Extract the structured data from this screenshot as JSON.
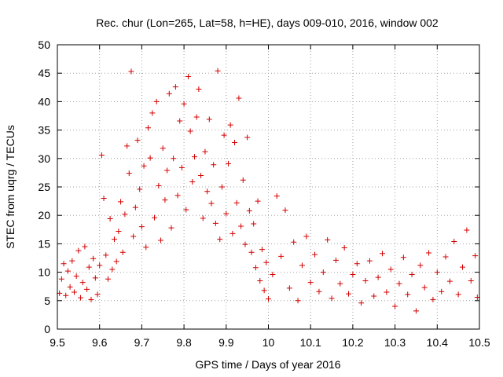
{
  "chart_data": {
    "type": "scatter",
    "title": "Rec. chur (Lon=265, Lat=58, h=HE), days 009-010, 2016, window 002",
    "xlabel": "GPS time / Days of year 2016",
    "ylabel": "STEC from uqrg / TECUs",
    "xlim": [
      9.5,
      10.5
    ],
    "ylim": [
      0,
      50
    ],
    "x_ticks": [
      "9.5",
      "9.6",
      "9.7",
      "9.8",
      "9.9",
      "10",
      "10.1",
      "10.2",
      "10.3",
      "10.4",
      "10.5"
    ],
    "y_ticks": [
      "0",
      "5",
      "10",
      "15",
      "20",
      "25",
      "30",
      "35",
      "40",
      "45",
      "50"
    ],
    "grid": true,
    "marker": "plus",
    "color": "#d40000",
    "series": [
      {
        "points": [
          [
            9.505,
            6.3
          ],
          [
            9.51,
            8.8
          ],
          [
            9.515,
            11.5
          ],
          [
            9.52,
            5.9
          ],
          [
            9.525,
            10.2
          ],
          [
            9.53,
            7.4
          ],
          [
            9.535,
            12.0
          ],
          [
            9.54,
            6.5
          ],
          [
            9.545,
            9.3
          ],
          [
            9.55,
            13.8
          ],
          [
            9.555,
            5.5
          ],
          [
            9.56,
            8.2
          ],
          [
            9.565,
            14.5
          ],
          [
            9.57,
            7.0
          ],
          [
            9.575,
            10.9
          ],
          [
            9.58,
            5.2
          ],
          [
            9.585,
            12.4
          ],
          [
            9.59,
            9.0
          ],
          [
            9.595,
            6.1
          ],
          [
            9.6,
            11.2
          ],
          [
            9.605,
            30.6
          ],
          [
            9.61,
            23.0
          ],
          [
            9.615,
            13.0
          ],
          [
            9.62,
            8.8
          ],
          [
            9.625,
            19.4
          ],
          [
            9.63,
            10.5
          ],
          [
            9.635,
            15.8
          ],
          [
            9.64,
            11.9
          ],
          [
            9.645,
            17.2
          ],
          [
            9.65,
            22.4
          ],
          [
            9.655,
            13.5
          ],
          [
            9.66,
            20.2
          ],
          [
            9.665,
            32.2
          ],
          [
            9.67,
            27.4
          ],
          [
            9.675,
            45.3
          ],
          [
            9.68,
            16.3
          ],
          [
            9.685,
            21.4
          ],
          [
            9.69,
            33.2
          ],
          [
            9.695,
            24.6
          ],
          [
            9.7,
            18.0
          ],
          [
            9.705,
            28.7
          ],
          [
            9.71,
            14.4
          ],
          [
            9.715,
            35.4
          ],
          [
            9.72,
            30.1
          ],
          [
            9.725,
            38.0
          ],
          [
            9.73,
            19.6
          ],
          [
            9.735,
            40.0
          ],
          [
            9.74,
            25.2
          ],
          [
            9.745,
            15.6
          ],
          [
            9.75,
            31.8
          ],
          [
            9.755,
            22.7
          ],
          [
            9.76,
            27.9
          ],
          [
            9.765,
            41.4
          ],
          [
            9.77,
            17.8
          ],
          [
            9.775,
            30.0
          ],
          [
            9.78,
            42.6
          ],
          [
            9.785,
            23.5
          ],
          [
            9.79,
            36.6
          ],
          [
            9.795,
            28.4
          ],
          [
            9.8,
            39.6
          ],
          [
            9.805,
            21.0
          ],
          [
            9.81,
            44.4
          ],
          [
            9.815,
            34.8
          ],
          [
            9.82,
            25.9
          ],
          [
            9.825,
            30.3
          ],
          [
            9.83,
            37.3
          ],
          [
            9.835,
            42.2
          ],
          [
            9.84,
            27.0
          ],
          [
            9.845,
            19.5
          ],
          [
            9.85,
            31.2
          ],
          [
            9.855,
            24.2
          ],
          [
            9.86,
            36.9
          ],
          [
            9.865,
            22.1
          ],
          [
            9.87,
            28.9
          ],
          [
            9.875,
            18.6
          ],
          [
            9.88,
            45.4
          ],
          [
            9.885,
            15.8
          ],
          [
            9.89,
            25.0
          ],
          [
            9.895,
            34.1
          ],
          [
            9.9,
            20.3
          ],
          [
            9.905,
            29.1
          ],
          [
            9.91,
            35.9
          ],
          [
            9.915,
            16.8
          ],
          [
            9.92,
            32.8
          ],
          [
            9.925,
            22.2
          ],
          [
            9.93,
            40.6
          ],
          [
            9.935,
            18.1
          ],
          [
            9.94,
            26.2
          ],
          [
            9.945,
            14.9
          ],
          [
            9.95,
            33.7
          ],
          [
            9.955,
            20.8
          ],
          [
            9.96,
            13.5
          ],
          [
            9.965,
            18.5
          ],
          [
            9.97,
            10.8
          ],
          [
            9.975,
            22.5
          ],
          [
            9.98,
            8.5
          ],
          [
            9.985,
            14.0
          ],
          [
            9.99,
            6.8
          ],
          [
            9.995,
            11.7
          ],
          [
            10.0,
            5.3
          ],
          [
            10.01,
            9.6
          ],
          [
            10.02,
            23.4
          ],
          [
            10.03,
            12.8
          ],
          [
            10.04,
            20.9
          ],
          [
            10.05,
            7.2
          ],
          [
            10.06,
            15.3
          ],
          [
            10.07,
            5.0
          ],
          [
            10.08,
            11.2
          ],
          [
            10.09,
            16.3
          ],
          [
            10.1,
            8.2
          ],
          [
            10.11,
            13.1
          ],
          [
            10.12,
            6.6
          ],
          [
            10.13,
            10.0
          ],
          [
            10.14,
            15.7
          ],
          [
            10.15,
            5.4
          ],
          [
            10.16,
            12.1
          ],
          [
            10.17,
            8.0
          ],
          [
            10.18,
            14.3
          ],
          [
            10.19,
            6.2
          ],
          [
            10.2,
            9.6
          ],
          [
            10.21,
            11.5
          ],
          [
            10.22,
            4.6
          ],
          [
            10.23,
            8.5
          ],
          [
            10.24,
            12.0
          ],
          [
            10.25,
            5.8
          ],
          [
            10.26,
            9.1
          ],
          [
            10.27,
            13.3
          ],
          [
            10.28,
            6.5
          ],
          [
            10.29,
            10.5
          ],
          [
            10.3,
            4.0
          ],
          [
            10.31,
            8.0
          ],
          [
            10.32,
            12.6
          ],
          [
            10.33,
            6.1
          ],
          [
            10.34,
            9.6
          ],
          [
            10.35,
            3.2
          ],
          [
            10.36,
            11.2
          ],
          [
            10.37,
            7.3
          ],
          [
            10.38,
            13.4
          ],
          [
            10.39,
            5.2
          ],
          [
            10.4,
            10.0
          ],
          [
            10.41,
            6.6
          ],
          [
            10.42,
            12.7
          ],
          [
            10.43,
            8.4
          ],
          [
            10.44,
            15.4
          ],
          [
            10.45,
            6.1
          ],
          [
            10.46,
            10.9
          ],
          [
            10.47,
            17.4
          ],
          [
            10.48,
            8.5
          ],
          [
            10.49,
            12.9
          ],
          [
            10.495,
            5.6
          ]
        ]
      }
    ]
  }
}
